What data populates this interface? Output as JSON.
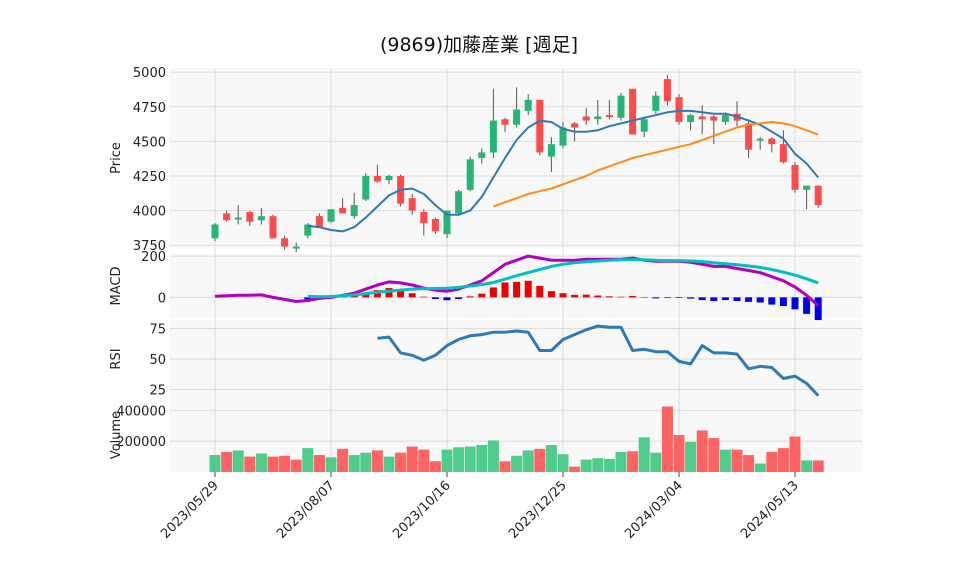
{
  "chart_data": {
    "type": "candlestick",
    "title": "(9869)加藤産業 [週足]",
    "x_tick_labels": [
      "2023/05/29",
      "2023/08/07",
      "2023/10/16",
      "2023/12/25",
      "2024/03/04",
      "2024/05/13"
    ],
    "x_tick_index": [
      0,
      10,
      20,
      30,
      40,
      50
    ],
    "colors": {
      "up": "#26b574",
      "down": "#ff4a4a",
      "ma_short": "#2e7ab8",
      "ma_long": "#ff8c1a",
      "macd": "#b000c0",
      "signal": "#00c0c0",
      "hist_pos": "#ee0000",
      "hist_neg": "#0000ee",
      "rsi": "#2e7ab8",
      "vol_up": "#4fcb8c",
      "vol_down": "#ff6464"
    },
    "price": {
      "ylabel": "Price",
      "yticks": [
        "3750",
        "4000",
        "4250",
        "4500",
        "4750",
        "5000"
      ],
      "ylim": [
        3730,
        5030
      ],
      "ohlc": [
        [
          3800,
          3910,
          3780,
          3900
        ],
        [
          3980,
          4000,
          3920,
          3930
        ],
        [
          3950,
          4040,
          3900,
          3950
        ],
        [
          3990,
          4000,
          3890,
          3920
        ],
        [
          3930,
          4020,
          3900,
          3960
        ],
        [
          3960,
          3970,
          3800,
          3800
        ],
        [
          3800,
          3820,
          3720,
          3740
        ],
        [
          3730,
          3770,
          3700,
          3740
        ],
        [
          3820,
          3910,
          3800,
          3900
        ],
        [
          3960,
          3980,
          3880,
          3880
        ],
        [
          3920,
          4010,
          3910,
          4010
        ],
        [
          4020,
          4090,
          3990,
          3980
        ],
        [
          3960,
          4130,
          3940,
          4040
        ],
        [
          4080,
          4270,
          4070,
          4250
        ],
        [
          4250,
          4330,
          4200,
          4210
        ],
        [
          4220,
          4260,
          4190,
          4250
        ],
        [
          4250,
          4260,
          4030,
          4050
        ],
        [
          4090,
          4120,
          3970,
          4000
        ],
        [
          3990,
          4010,
          3820,
          3910
        ],
        [
          3940,
          3950,
          3830,
          3850
        ],
        [
          3830,
          4000,
          3800,
          4000
        ],
        [
          3980,
          4150,
          3960,
          4140
        ],
        [
          4150,
          4390,
          4140,
          4370
        ],
        [
          4380,
          4450,
          4340,
          4420
        ],
        [
          4420,
          4880,
          4380,
          4650
        ],
        [
          4660,
          4670,
          4570,
          4620
        ],
        [
          4620,
          4890,
          4600,
          4730
        ],
        [
          4720,
          4840,
          4690,
          4800
        ],
        [
          4800,
          4800,
          4400,
          4420
        ],
        [
          4390,
          4530,
          4280,
          4480
        ],
        [
          4470,
          4640,
          4450,
          4600
        ],
        [
          4630,
          4640,
          4500,
          4600
        ],
        [
          4680,
          4740,
          4620,
          4650
        ],
        [
          4660,
          4800,
          4620,
          4680
        ],
        [
          4690,
          4800,
          4660,
          4680
        ],
        [
          4670,
          4850,
          4650,
          4830
        ],
        [
          4880,
          4880,
          4550,
          4550
        ],
        [
          4570,
          4680,
          4530,
          4660
        ],
        [
          4720,
          4860,
          4700,
          4830
        ],
        [
          4950,
          4980,
          4760,
          4790
        ],
        [
          4820,
          4840,
          4620,
          4640
        ],
        [
          4640,
          4700,
          4580,
          4690
        ],
        [
          4680,
          4760,
          4550,
          4660
        ],
        [
          4680,
          4690,
          4480,
          4650
        ],
        [
          4640,
          4710,
          4620,
          4690
        ],
        [
          4700,
          4790,
          4610,
          4650
        ],
        [
          4630,
          4660,
          4380,
          4440
        ],
        [
          4520,
          4530,
          4440,
          4520
        ],
        [
          4520,
          4530,
          4420,
          4480
        ],
        [
          4480,
          4580,
          4340,
          4350
        ],
        [
          4330,
          4350,
          4130,
          4150
        ],
        [
          4150,
          4180,
          4010,
          4180
        ],
        [
          4180,
          4180,
          4020,
          4040
        ]
      ],
      "ma_short": [
        null,
        null,
        null,
        null,
        null,
        null,
        null,
        null,
        3890,
        3880,
        3860,
        3850,
        3880,
        3950,
        4030,
        4110,
        4150,
        4160,
        4120,
        4040,
        3970,
        3970,
        4000,
        4100,
        4240,
        4380,
        4510,
        4600,
        4650,
        4640,
        4590,
        4570,
        4570,
        4580,
        4610,
        4630,
        4650,
        4670,
        4690,
        4710,
        4720,
        4720,
        4710,
        4700,
        4700,
        4680,
        4650,
        4620,
        4570,
        4520,
        4410,
        4340,
        4240
      ],
      "ma_long": [
        null,
        null,
        null,
        null,
        null,
        null,
        null,
        null,
        null,
        null,
        null,
        null,
        null,
        null,
        null,
        null,
        null,
        null,
        null,
        null,
        null,
        null,
        null,
        null,
        4030,
        4060,
        4090,
        4120,
        4140,
        4160,
        4190,
        4220,
        4250,
        4290,
        4320,
        4350,
        4380,
        4400,
        4420,
        4440,
        4460,
        4480,
        4510,
        4540,
        4570,
        4600,
        4620,
        4630,
        4640,
        4630,
        4610,
        4580,
        4550
      ]
    },
    "macd": {
      "ylabel": "MACD",
      "yticks": [
        "200",
        "0"
      ],
      "ylim": [
        -100,
        210
      ],
      "macd": [
        5,
        8,
        10,
        10,
        12,
        0,
        -10,
        -20,
        -15,
        -5,
        0,
        10,
        20,
        40,
        60,
        75,
        70,
        60,
        45,
        35,
        30,
        40,
        60,
        80,
        120,
        160,
        180,
        200,
        190,
        180,
        180,
        180,
        185,
        185,
        185,
        185,
        190,
        180,
        175,
        175,
        175,
        170,
        160,
        150,
        150,
        140,
        130,
        120,
        100,
        80,
        50,
        10,
        -40
      ],
      "signal": [
        null,
        null,
        null,
        null,
        null,
        null,
        null,
        null,
        5,
        3,
        4,
        8,
        12,
        18,
        25,
        30,
        35,
        40,
        42,
        43,
        44,
        48,
        55,
        62,
        72,
        88,
        105,
        120,
        135,
        150,
        160,
        168,
        172,
        176,
        180,
        182,
        183,
        182,
        180,
        178,
        178,
        176,
        173,
        168,
        163,
        158,
        152,
        145,
        135,
        122,
        108,
        90,
        70
      ],
      "hist": [
        0,
        0,
        0,
        0,
        0,
        0,
        0,
        0,
        -10,
        -8,
        -4,
        2,
        8,
        22,
        35,
        45,
        35,
        20,
        3,
        -8,
        -14,
        -8,
        5,
        18,
        48,
        72,
        75,
        80,
        55,
        30,
        20,
        12,
        13,
        9,
        5,
        3,
        7,
        -2,
        -5,
        -3,
        -3,
        -6,
        -13,
        -18,
        -13,
        -18,
        -22,
        -25,
        -35,
        -42,
        -58,
        -80,
        -110
      ]
    },
    "rsi": {
      "ylabel": "RSI",
      "yticks": [
        "75",
        "50",
        "25"
      ],
      "ylim": [
        18,
        82
      ],
      "values": [
        null,
        null,
        null,
        null,
        null,
        null,
        null,
        null,
        null,
        null,
        null,
        null,
        null,
        null,
        67,
        68,
        55,
        53,
        49,
        53,
        61,
        66,
        69,
        70,
        72,
        72,
        73,
        72,
        57,
        57,
        66,
        70,
        74,
        77,
        76,
        76,
        57,
        58,
        56,
        56,
        48,
        46,
        61,
        55,
        55,
        54,
        42,
        44,
        43,
        34,
        36,
        30,
        20
      ]
    },
    "volume": {
      "ylabel": "Volume",
      "yticks": [
        "400000",
        "200000"
      ],
      "ylim": [
        0,
        480000
      ],
      "values": [
        110000,
        130000,
        140000,
        100000,
        120000,
        100000,
        105000,
        80000,
        155000,
        110000,
        95000,
        150000,
        110000,
        125000,
        140000,
        100000,
        125000,
        165000,
        145000,
        70000,
        145000,
        160000,
        165000,
        175000,
        205000,
        70000,
        105000,
        140000,
        150000,
        175000,
        115000,
        35000,
        80000,
        90000,
        85000,
        130000,
        135000,
        225000,
        125000,
        425000,
        240000,
        195000,
        270000,
        220000,
        145000,
        145000,
        110000,
        55000,
        130000,
        155000,
        230000,
        75000,
        75000
      ],
      "up": [
        1,
        0,
        1,
        0,
        1,
        0,
        0,
        0,
        1,
        0,
        1,
        0,
        1,
        1,
        0,
        1,
        0,
        0,
        0,
        0,
        1,
        1,
        1,
        1,
        1,
        0,
        1,
        1,
        0,
        1,
        1,
        0,
        1,
        1,
        1,
        1,
        0,
        1,
        1,
        0,
        0,
        1,
        0,
        0,
        1,
        0,
        0,
        1,
        0,
        0,
        0,
        1,
        0
      ]
    }
  }
}
